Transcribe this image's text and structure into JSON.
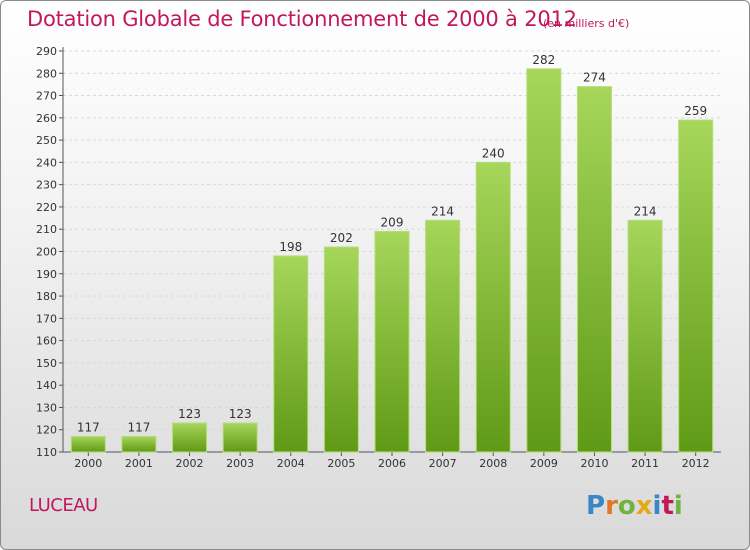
{
  "title": "Dotation Globale de Fonctionnement de 2000 à 2012",
  "subtitle": "(en milliers d'€)",
  "commune": "LUCEAU",
  "logo": {
    "text": "Proxiti",
    "letters": [
      "P",
      "r",
      "o",
      "x",
      "i",
      "t",
      "i"
    ]
  },
  "colors": {
    "title": "#c2185b",
    "bar_light": "#9ed04e",
    "bar_dark": "#5f9a16",
    "grid": "#d8d8d8"
  },
  "chart_data": {
    "type": "bar",
    "title": "Dotation Globale de Fonctionnement de 2000 à 2012",
    "subtitle": "(en milliers d'€)",
    "xlabel": "",
    "ylabel": "",
    "categories": [
      "2000",
      "2001",
      "2002",
      "2003",
      "2004",
      "2005",
      "2006",
      "2007",
      "2008",
      "2009",
      "2010",
      "2011",
      "2012"
    ],
    "values": [
      117,
      117,
      123,
      123,
      198,
      202,
      209,
      214,
      240,
      282,
      274,
      214,
      259
    ],
    "ylim": [
      110,
      290
    ],
    "yticks": [
      110,
      120,
      130,
      140,
      150,
      160,
      170,
      180,
      190,
      200,
      210,
      220,
      230,
      240,
      250,
      260,
      270,
      280,
      290
    ],
    "grid": true,
    "legend": "none"
  }
}
